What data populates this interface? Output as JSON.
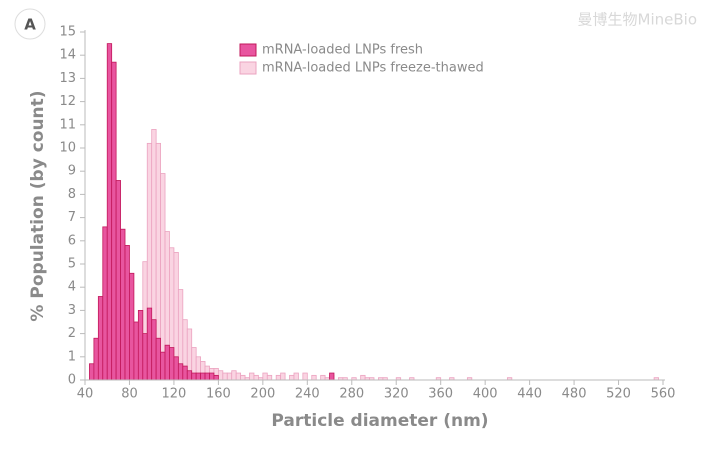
{
  "chart_data": {
    "type": "histogram",
    "panel_label": "A",
    "watermark": "曼博生物MineBio",
    "x_label": "Particle diameter (nm)",
    "y_label": "% Population (by count)",
    "xlim": [
      40,
      560
    ],
    "ylim": [
      0,
      15
    ],
    "xticks": [
      40,
      80,
      120,
      160,
      200,
      240,
      280,
      320,
      360,
      400,
      440,
      480,
      520,
      560
    ],
    "yticks": [
      0,
      1,
      2,
      3,
      4,
      5,
      6,
      7,
      8,
      9,
      10,
      11,
      12,
      13,
      14,
      15
    ],
    "legend": "upper center",
    "bins": [
      44,
      48,
      52,
      56,
      60,
      64,
      68,
      72,
      76,
      80,
      84,
      88,
      92,
      96,
      100,
      104,
      108,
      112,
      116,
      120,
      124,
      128,
      132,
      136,
      140,
      144,
      148,
      152,
      156,
      160,
      164,
      168,
      172,
      176,
      180,
      184,
      188,
      192,
      196,
      200,
      204,
      208,
      212,
      216,
      220,
      224,
      228,
      232,
      236,
      240,
      244,
      248,
      252,
      256,
      260,
      264,
      268,
      272,
      276,
      280,
      284,
      288,
      292,
      296,
      300,
      304,
      308,
      312,
      316,
      320,
      324,
      328,
      332,
      336,
      340,
      344,
      348,
      352,
      356,
      360,
      364,
      368,
      372,
      376,
      380,
      384,
      388,
      392,
      396,
      400,
      404,
      408,
      412,
      416,
      420,
      424,
      428,
      432,
      436,
      440,
      444,
      448,
      452,
      456,
      460,
      464,
      468,
      472,
      476,
      480,
      484,
      488,
      492,
      496,
      500,
      504,
      508,
      512,
      516,
      520,
      524,
      528,
      532,
      536,
      540,
      544,
      548,
      552,
      556
    ],
    "series": [
      {
        "name": "mRNA-loaded LNPs fresh",
        "color": "#e8559f",
        "edgecolor": "#c2185b",
        "values": [
          0.7,
          1.8,
          3.6,
          6.6,
          14.5,
          13.7,
          8.6,
          6.5,
          5.8,
          4.6,
          2.5,
          3.0,
          2.0,
          3.1,
          2.6,
          1.8,
          1.2,
          1.5,
          1.4,
          1.0,
          0.7,
          0.6,
          0.4,
          0.3,
          0.3,
          0.3,
          0.3,
          0.3,
          0.2,
          0,
          0,
          0,
          0,
          0,
          0,
          0,
          0,
          0,
          0,
          0,
          0,
          0,
          0,
          0,
          0,
          0,
          0,
          0,
          0,
          0,
          0,
          0,
          0,
          0,
          0.3,
          0,
          0,
          0,
          0,
          0,
          0,
          0,
          0,
          0,
          0,
          0,
          0,
          0,
          0,
          0,
          0,
          0,
          0,
          0,
          0,
          0,
          0,
          0,
          0,
          0,
          0,
          0,
          0,
          0,
          0,
          0,
          0,
          0,
          0,
          0,
          0,
          0,
          0,
          0,
          0,
          0,
          0,
          0,
          0,
          0,
          0,
          0,
          0,
          0,
          0,
          0,
          0,
          0,
          0,
          0,
          0,
          0,
          0,
          0,
          0,
          0,
          0,
          0,
          0,
          0,
          0,
          0,
          0,
          0
        ]
      },
      {
        "name": "mRNA-loaded LNPs freeze-thawed",
        "color": "#fad4e2",
        "edgecolor": "#eba3c0",
        "values": [
          0,
          0,
          0,
          0,
          0,
          0,
          0,
          0,
          0.2,
          0.6,
          1.5,
          2.6,
          5.1,
          10.2,
          10.8,
          10.2,
          8.9,
          6.4,
          5.7,
          5.5,
          3.9,
          2.6,
          2.2,
          1.4,
          1.0,
          0.8,
          0.6,
          0.5,
          0.5,
          0.4,
          0.3,
          0.3,
          0.4,
          0.3,
          0.2,
          0.1,
          0.3,
          0.2,
          0.1,
          0.3,
          0.2,
          0,
          0.2,
          0.3,
          0,
          0.2,
          0.3,
          0,
          0.3,
          0,
          0.2,
          0,
          0.2,
          0.1,
          0.2,
          0,
          0.1,
          0.1,
          0,
          0.1,
          0,
          0.2,
          0.1,
          0.1,
          0,
          0.1,
          0.1,
          0,
          0,
          0.1,
          0,
          0,
          0.1,
          0,
          0,
          0,
          0,
          0,
          0.1,
          0,
          0,
          0.1,
          0,
          0,
          0,
          0.1,
          0,
          0,
          0,
          0,
          0,
          0,
          0,
          0,
          0.1,
          0,
          0,
          0,
          0,
          0,
          0,
          0,
          0,
          0,
          0,
          0,
          0,
          0,
          0,
          0,
          0,
          0,
          0,
          0,
          0,
          0,
          0,
          0,
          0,
          0,
          0,
          0,
          0,
          0,
          0,
          0,
          0,
          0.1
        ]
      }
    ]
  }
}
